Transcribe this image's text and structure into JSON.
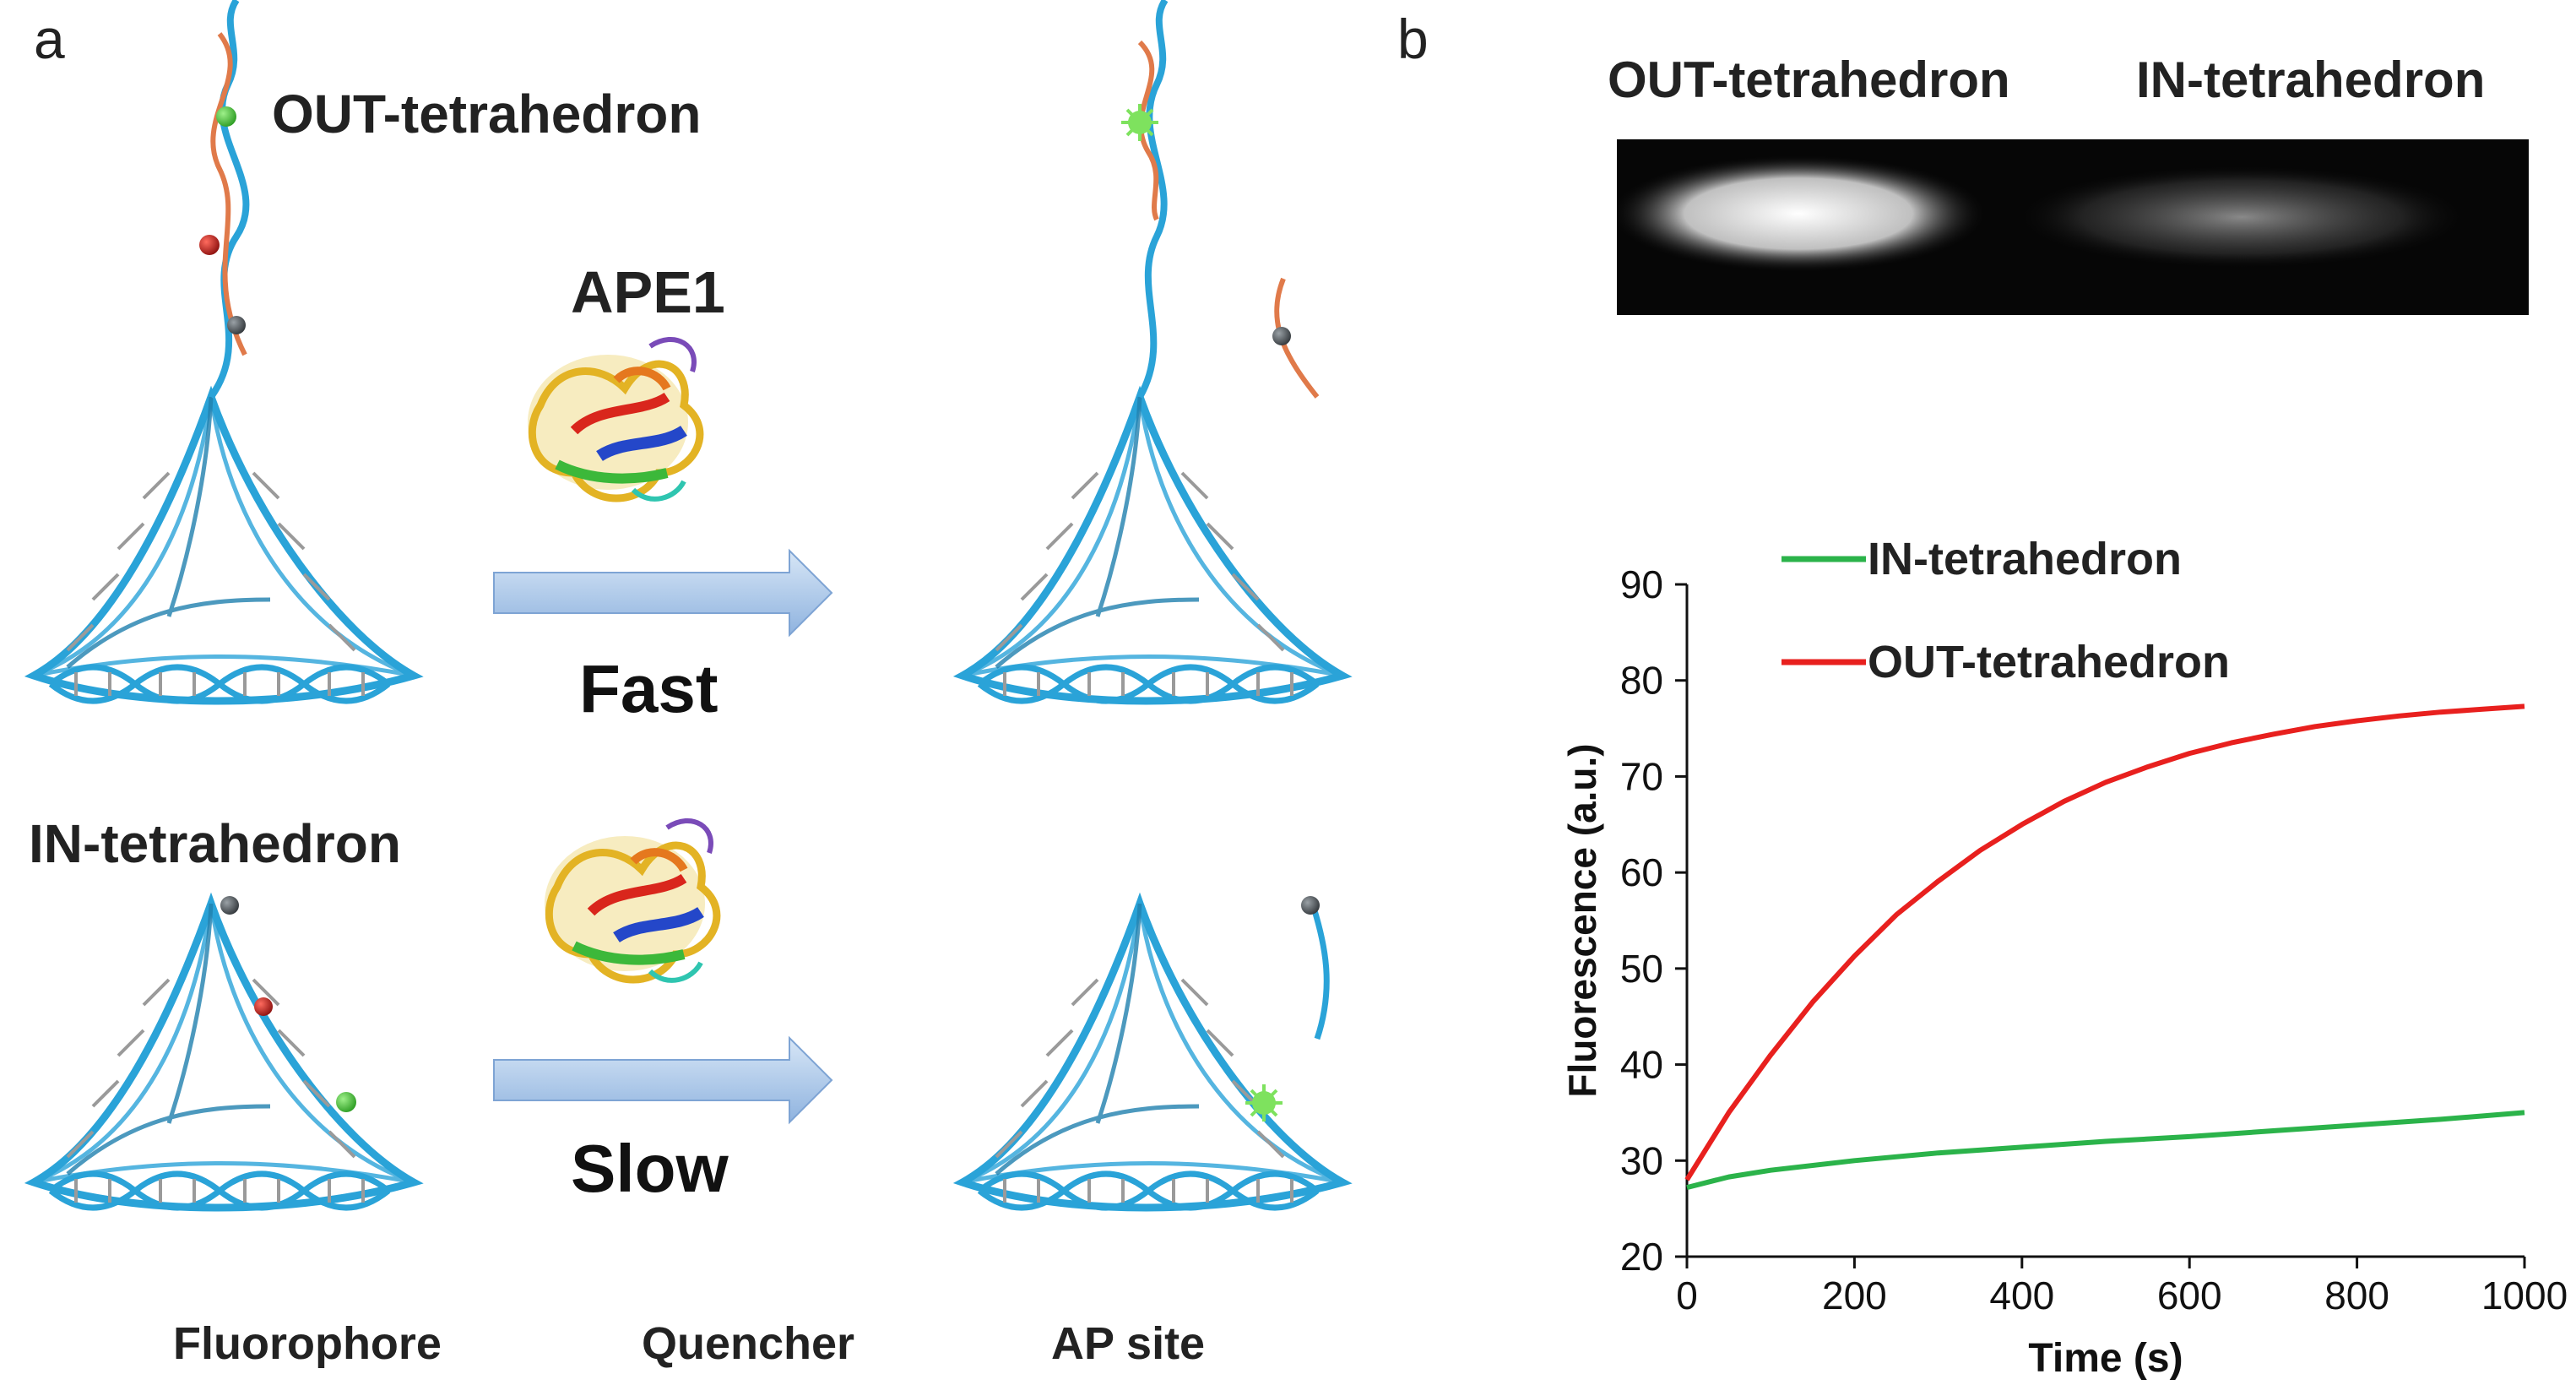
{
  "panel_a": {
    "letter": "a",
    "out_label": "OUT-tetrahedron",
    "in_label": "IN-tetrahedron",
    "enzyme_label": "APE1",
    "fast_label": "Fast",
    "slow_label": "Slow",
    "legend": {
      "fluorophore": "Fluorophore",
      "quencher": "Quencher",
      "ap_site": "AP site"
    },
    "colors": {
      "dna": "#2aa3d8",
      "probe_strand": "#e07a4a",
      "fluorophore": "#46c23a",
      "quencher": "#555b60",
      "ap_site": "#c8221f",
      "arrow": "#a9c6e8"
    }
  },
  "panel_b": {
    "letter": "b",
    "gel_labels": [
      "OUT-tetrahedron",
      "IN-tetrahedron"
    ]
  },
  "chart_data": {
    "type": "line",
    "xlabel": "Time (s)",
    "ylabel": "Fluorescence  (a.u.)",
    "xlim": [
      0,
      1000
    ],
    "ylim": [
      20,
      90
    ],
    "xticks": [
      0,
      200,
      400,
      600,
      800,
      1000
    ],
    "yticks": [
      20,
      30,
      40,
      50,
      60,
      70,
      80,
      90
    ],
    "legend_position": "top-left",
    "series": [
      {
        "name": "IN-tetrahedron",
        "color": "#2bb34a",
        "x": [
          0,
          50,
          100,
          200,
          300,
          400,
          500,
          600,
          700,
          800,
          900,
          1000
        ],
        "y": [
          27.2,
          28.3,
          29.0,
          30.0,
          30.8,
          31.4,
          32.0,
          32.5,
          33.1,
          33.7,
          34.3,
          35.0
        ]
      },
      {
        "name": "OUT-tetrahedron",
        "color": "#e8201e",
        "x": [
          0,
          50,
          100,
          150,
          200,
          250,
          300,
          350,
          400,
          450,
          500,
          550,
          600,
          650,
          700,
          750,
          800,
          850,
          900,
          950,
          1000
        ],
        "y": [
          28.0,
          35.0,
          41.0,
          46.5,
          51.3,
          55.6,
          59.1,
          62.3,
          65.0,
          67.4,
          69.4,
          71.0,
          72.4,
          73.5,
          74.4,
          75.2,
          75.8,
          76.3,
          76.7,
          77.0,
          77.3
        ]
      }
    ]
  }
}
